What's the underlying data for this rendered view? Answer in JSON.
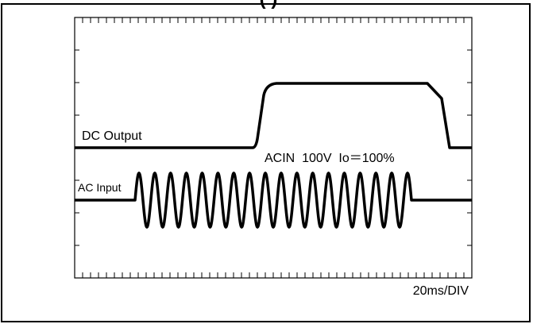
{
  "header": {
    "partial_title": "(            )"
  },
  "traces": {
    "dc_output": {
      "label": "DC Output"
    },
    "ac_input": {
      "label": "AC Input"
    }
  },
  "condition_label": "ACIN  100V  Io＝100%",
  "timebase_label": "20ms/DIV",
  "scope": {
    "divisions_x": 10,
    "divisions_y": 8
  }
}
